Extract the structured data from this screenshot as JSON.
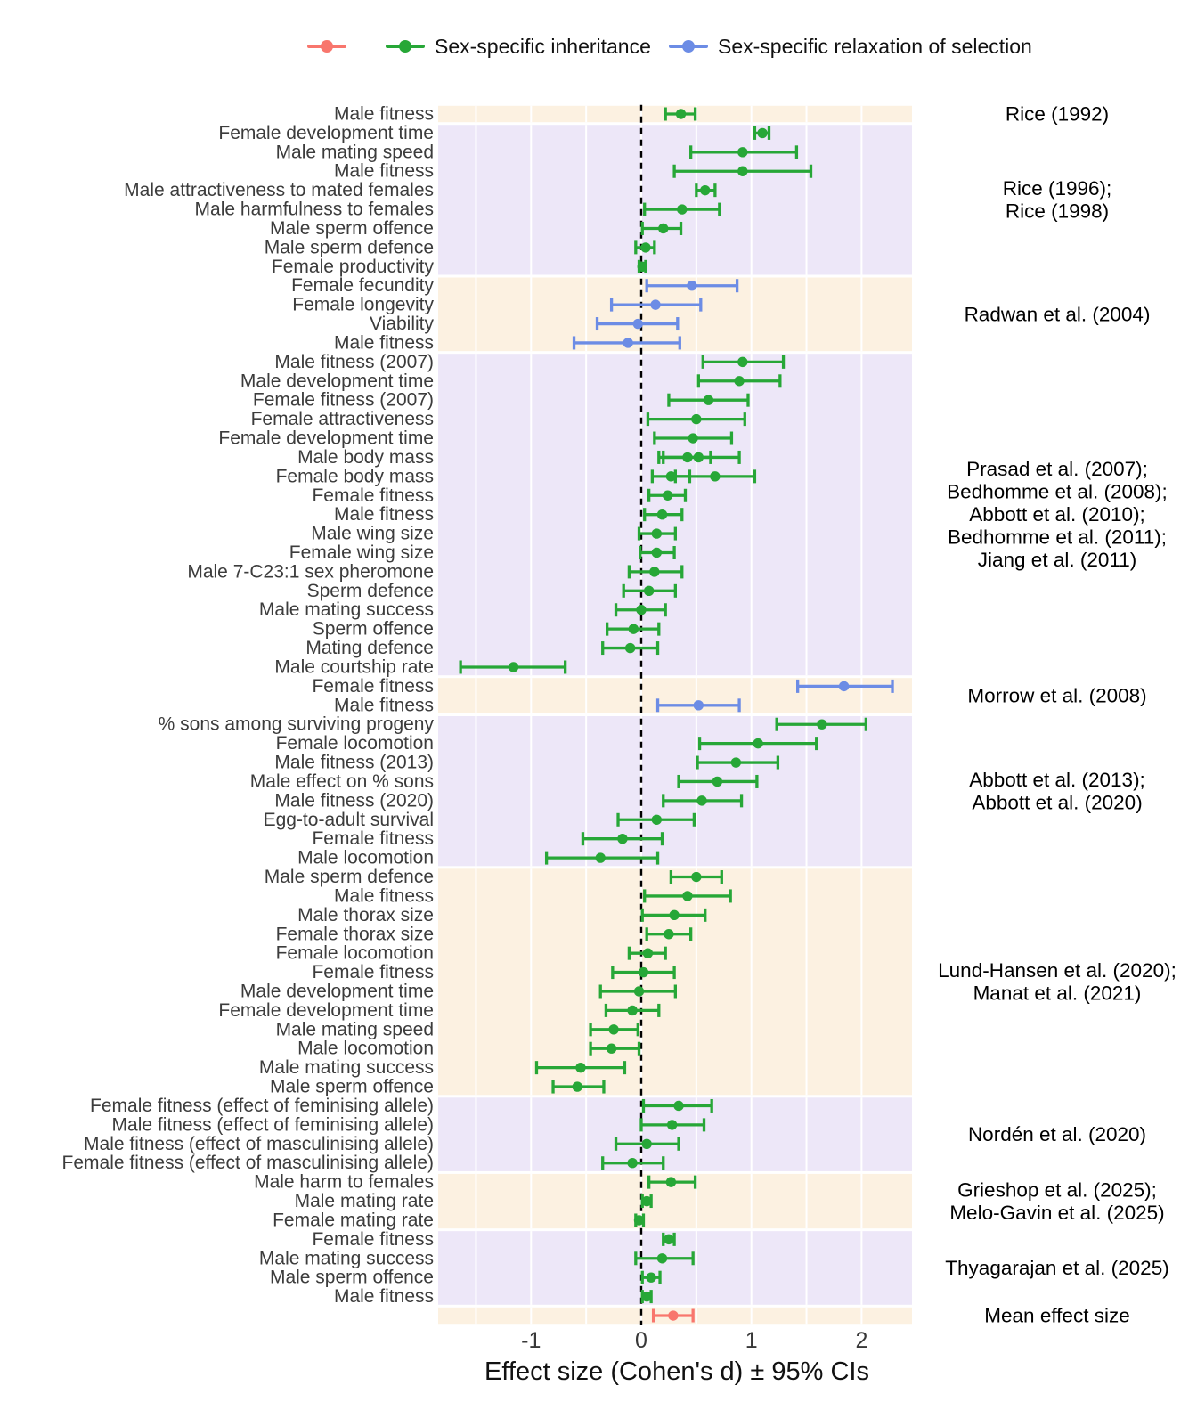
{
  "legend": {
    "items": [
      {
        "label": "",
        "series": "mean",
        "color": "#F8766D"
      },
      {
        "label": "Sex-specific inheritance",
        "series": "inheritance",
        "color": "#27A737"
      },
      {
        "label": "Sex-specific relaxation of selection",
        "series": "relaxation",
        "color": "#6C8CE5"
      }
    ]
  },
  "chart_data": {
    "type": "scatter",
    "subtype": "forest-plot",
    "xlabel": "Effect size (Cohen's d) ± 95% CIs",
    "x_ticks": [
      -1,
      0,
      1,
      2
    ],
    "x_tick_labels": [
      "-1",
      "0",
      "1",
      "2"
    ],
    "xlim": [
      -1.85,
      2.46
    ],
    "reference_line_x": 0,
    "grid_step": 0.5,
    "legend_position": "top",
    "band_colors": {
      "cream": "#FCF1E1",
      "purple": "#EDE7F8"
    },
    "series_colors": {
      "mean": "#F8766D",
      "inheritance": "#27A737",
      "relaxation": "#6C8CE5"
    },
    "groups": [
      {
        "study_lines": [
          "Rice (1992)"
        ],
        "band": "cream",
        "series": "inheritance",
        "rows": [
          {
            "label": "Male fitness",
            "points": [
              {
                "d": 0.36,
                "lo": 0.22,
                "hi": 0.49
              }
            ]
          }
        ]
      },
      {
        "study_lines": [
          "Rice (1996);",
          "Rice (1998)"
        ],
        "band": "purple",
        "series": "inheritance",
        "rows": [
          {
            "label": "Female development time",
            "points": [
              {
                "d": 1.1,
                "lo": 1.03,
                "hi": 1.16
              }
            ]
          },
          {
            "label": "Male mating speed",
            "points": [
              {
                "d": 0.92,
                "lo": 0.45,
                "hi": 1.41
              }
            ]
          },
          {
            "label": "Male fitness",
            "points": [
              {
                "d": 0.92,
                "lo": 0.3,
                "hi": 1.54
              }
            ]
          },
          {
            "label": "Male attractiveness to mated females",
            "points": [
              {
                "d": 0.58,
                "lo": 0.5,
                "hi": 0.67
              }
            ]
          },
          {
            "label": "Male harmfulness to females",
            "points": [
              {
                "d": 0.37,
                "lo": 0.03,
                "hi": 0.71
              }
            ]
          },
          {
            "label": "Male sperm offence",
            "points": [
              {
                "d": 0.2,
                "lo": 0.01,
                "hi": 0.36
              }
            ]
          },
          {
            "label": "Male sperm defence",
            "points": [
              {
                "d": 0.04,
                "lo": -0.05,
                "hi": 0.12
              }
            ]
          },
          {
            "label": "Female productivity",
            "points": [
              {
                "d": 0.01,
                "lo": -0.02,
                "hi": 0.04
              }
            ]
          }
        ]
      },
      {
        "study_lines": [
          "Radwan et al. (2004)"
        ],
        "band": "cream",
        "series": "relaxation",
        "rows": [
          {
            "label": "Female fecundity",
            "points": [
              {
                "d": 0.46,
                "lo": 0.05,
                "hi": 0.87
              }
            ]
          },
          {
            "label": "Female longevity",
            "points": [
              {
                "d": 0.13,
                "lo": -0.27,
                "hi": 0.54
              }
            ]
          },
          {
            "label": "Viability",
            "points": [
              {
                "d": -0.03,
                "lo": -0.4,
                "hi": 0.33
              }
            ]
          },
          {
            "label": "Male fitness",
            "points": [
              {
                "d": -0.12,
                "lo": -0.61,
                "hi": 0.35
              }
            ]
          }
        ]
      },
      {
        "study_lines": [
          "Prasad et al. (2007);",
          "Bedhomme et al. (2008);",
          "Abbott et al. (2010);",
          "Bedhomme et al. (2011);",
          "Jiang et al. (2011)"
        ],
        "band": "purple",
        "series": "inheritance",
        "rows": [
          {
            "label": "Male fitness (2007)",
            "points": [
              {
                "d": 0.92,
                "lo": 0.56,
                "hi": 1.29
              }
            ]
          },
          {
            "label": "Male development time",
            "points": [
              {
                "d": 0.89,
                "lo": 0.52,
                "hi": 1.26
              }
            ]
          },
          {
            "label": "Female fitness (2007)",
            "points": [
              {
                "d": 0.61,
                "lo": 0.25,
                "hi": 0.97
              }
            ]
          },
          {
            "label": "Female attractiveness",
            "points": [
              {
                "d": 0.5,
                "lo": 0.06,
                "hi": 0.94
              }
            ]
          },
          {
            "label": "Female development time",
            "points": [
              {
                "d": 0.47,
                "lo": 0.12,
                "hi": 0.82
              }
            ]
          },
          {
            "label": "Male body mass",
            "points": [
              {
                "d": 0.42,
                "lo": 0.16,
                "hi": 0.63
              },
              {
                "d": 0.52,
                "lo": 0.2,
                "hi": 0.89
              }
            ]
          },
          {
            "label": "Female body mass",
            "points": [
              {
                "d": 0.27,
                "lo": 0.1,
                "hi": 0.44
              },
              {
                "d": 0.67,
                "lo": 0.31,
                "hi": 1.03
              }
            ]
          },
          {
            "label": "Female fitness",
            "points": [
              {
                "d": 0.24,
                "lo": 0.07,
                "hi": 0.4
              }
            ]
          },
          {
            "label": "Male fitness",
            "points": [
              {
                "d": 0.19,
                "lo": 0.03,
                "hi": 0.37
              }
            ]
          },
          {
            "label": "Male wing size",
            "points": [
              {
                "d": 0.14,
                "lo": -0.02,
                "hi": 0.31
              }
            ]
          },
          {
            "label": "Female wing size",
            "points": [
              {
                "d": 0.14,
                "lo": -0.01,
                "hi": 0.3
              }
            ]
          },
          {
            "label": "Male 7-C23:1 sex pheromone",
            "points": [
              {
                "d": 0.12,
                "lo": -0.11,
                "hi": 0.37
              }
            ]
          },
          {
            "label": "Sperm defence",
            "points": [
              {
                "d": 0.07,
                "lo": -0.16,
                "hi": 0.31
              }
            ]
          },
          {
            "label": "Male mating success",
            "points": [
              {
                "d": 0.0,
                "lo": -0.23,
                "hi": 0.22
              }
            ]
          },
          {
            "label": "Sperm offence",
            "points": [
              {
                "d": -0.07,
                "lo": -0.31,
                "hi": 0.16
              }
            ]
          },
          {
            "label": "Mating defence",
            "points": [
              {
                "d": -0.1,
                "lo": -0.35,
                "hi": 0.15
              }
            ]
          },
          {
            "label": "Male courtship rate",
            "points": [
              {
                "d": -1.16,
                "lo": -1.64,
                "hi": -0.69
              }
            ]
          }
        ]
      },
      {
        "study_lines": [
          "Morrow et al. (2008)"
        ],
        "band": "cream",
        "series": "relaxation",
        "rows": [
          {
            "label": "Female fitness",
            "points": [
              {
                "d": 1.84,
                "lo": 1.42,
                "hi": 2.28
              }
            ]
          },
          {
            "label": "Male fitness",
            "points": [
              {
                "d": 0.52,
                "lo": 0.15,
                "hi": 0.89
              }
            ]
          }
        ]
      },
      {
        "study_lines": [
          "Abbott et al. (2013);",
          "Abbott et al. (2020)"
        ],
        "band": "purple",
        "series": "inheritance",
        "rows": [
          {
            "label": "% sons among surviving progeny",
            "points": [
              {
                "d": 1.64,
                "lo": 1.23,
                "hi": 2.04
              }
            ]
          },
          {
            "label": "Female locomotion",
            "points": [
              {
                "d": 1.06,
                "lo": 0.53,
                "hi": 1.59
              }
            ]
          },
          {
            "label": "Male fitness (2013)",
            "points": [
              {
                "d": 0.86,
                "lo": 0.51,
                "hi": 1.24
              }
            ]
          },
          {
            "label": "Male effect on % sons",
            "points": [
              {
                "d": 0.69,
                "lo": 0.34,
                "hi": 1.05
              }
            ]
          },
          {
            "label": "Male fitness (2020)",
            "points": [
              {
                "d": 0.55,
                "lo": 0.2,
                "hi": 0.91
              }
            ]
          },
          {
            "label": "Egg-to-adult survival",
            "points": [
              {
                "d": 0.14,
                "lo": -0.21,
                "hi": 0.48
              }
            ]
          },
          {
            "label": "Female fitness",
            "points": [
              {
                "d": -0.17,
                "lo": -0.53,
                "hi": 0.19
              }
            ]
          },
          {
            "label": "Male locomotion",
            "points": [
              {
                "d": -0.37,
                "lo": -0.86,
                "hi": 0.15
              }
            ]
          }
        ]
      },
      {
        "study_lines": [
          "Lund-Hansen et al. (2020);",
          "Manat et al. (2021)"
        ],
        "band": "cream",
        "series": "inheritance",
        "rows": [
          {
            "label": "Male sperm defence",
            "points": [
              {
                "d": 0.5,
                "lo": 0.27,
                "hi": 0.73
              }
            ]
          },
          {
            "label": "Male fitness",
            "points": [
              {
                "d": 0.42,
                "lo": 0.03,
                "hi": 0.81
              }
            ]
          },
          {
            "label": "Male thorax size",
            "points": [
              {
                "d": 0.3,
                "lo": 0.01,
                "hi": 0.58
              }
            ]
          },
          {
            "label": "Female thorax size",
            "points": [
              {
                "d": 0.25,
                "lo": 0.05,
                "hi": 0.45
              }
            ]
          },
          {
            "label": "Female locomotion",
            "points": [
              {
                "d": 0.06,
                "lo": -0.11,
                "hi": 0.22
              }
            ]
          },
          {
            "label": "Female fitness",
            "points": [
              {
                "d": 0.02,
                "lo": -0.26,
                "hi": 0.3
              }
            ]
          },
          {
            "label": "Male development time",
            "points": [
              {
                "d": -0.02,
                "lo": -0.37,
                "hi": 0.31
              }
            ]
          },
          {
            "label": "Female development time",
            "points": [
              {
                "d": -0.08,
                "lo": -0.32,
                "hi": 0.16
              }
            ]
          },
          {
            "label": "Male mating speed",
            "points": [
              {
                "d": -0.25,
                "lo": -0.46,
                "hi": -0.03
              }
            ]
          },
          {
            "label": "Male locomotion",
            "points": [
              {
                "d": -0.27,
                "lo": -0.46,
                "hi": -0.02
              }
            ]
          },
          {
            "label": "Male mating success",
            "points": [
              {
                "d": -0.55,
                "lo": -0.95,
                "hi": -0.15
              }
            ]
          },
          {
            "label": "Male sperm offence",
            "points": [
              {
                "d": -0.58,
                "lo": -0.8,
                "hi": -0.34
              }
            ]
          }
        ]
      },
      {
        "study_lines": [
          "Nordén et al. (2020)"
        ],
        "band": "purple",
        "series": "inheritance",
        "rows": [
          {
            "label": "Female fitness (effect of feminising allele)",
            "points": [
              {
                "d": 0.34,
                "lo": 0.02,
                "hi": 0.64
              }
            ]
          },
          {
            "label": "Male fitness (effect of feminising allele)",
            "points": [
              {
                "d": 0.28,
                "lo": 0.0,
                "hi": 0.57
              }
            ]
          },
          {
            "label": "Male fitness (effect of masculinising allele)",
            "points": [
              {
                "d": 0.05,
                "lo": -0.23,
                "hi": 0.34
              }
            ]
          },
          {
            "label": "Female fitness (effect of masculinising allele)",
            "points": [
              {
                "d": -0.08,
                "lo": -0.35,
                "hi": 0.2
              }
            ]
          }
        ]
      },
      {
        "study_lines": [
          "Grieshop et al. (2025);",
          "Melo-Gavin et al. (2025)"
        ],
        "band": "cream",
        "series": "inheritance",
        "rows": [
          {
            "label": "Male harm to females",
            "points": [
              {
                "d": 0.27,
                "lo": 0.07,
                "hi": 0.49
              }
            ]
          },
          {
            "label": "Male mating rate",
            "points": [
              {
                "d": 0.05,
                "lo": 0.01,
                "hi": 0.09
              }
            ]
          },
          {
            "label": "Female mating rate",
            "points": [
              {
                "d": -0.02,
                "lo": -0.05,
                "hi": 0.02
              }
            ]
          }
        ]
      },
      {
        "study_lines": [
          "Thyagarajan et al. (2025)"
        ],
        "band": "purple",
        "series": "inheritance",
        "rows": [
          {
            "label": "Female fitness",
            "points": [
              {
                "d": 0.25,
                "lo": 0.2,
                "hi": 0.3
              }
            ]
          },
          {
            "label": "Male mating success",
            "points": [
              {
                "d": 0.19,
                "lo": -0.05,
                "hi": 0.47
              }
            ]
          },
          {
            "label": "Male sperm offence",
            "points": [
              {
                "d": 0.09,
                "lo": 0.01,
                "hi": 0.17
              }
            ]
          },
          {
            "label": "Male fitness",
            "points": [
              {
                "d": 0.05,
                "lo": 0.01,
                "hi": 0.09
              }
            ]
          }
        ]
      },
      {
        "study_lines": [
          "Mean effect size"
        ],
        "band": "cream",
        "series": "mean",
        "rows": [
          {
            "label": "",
            "points": [
              {
                "d": 0.29,
                "lo": 0.11,
                "hi": 0.47
              }
            ]
          }
        ]
      }
    ]
  }
}
